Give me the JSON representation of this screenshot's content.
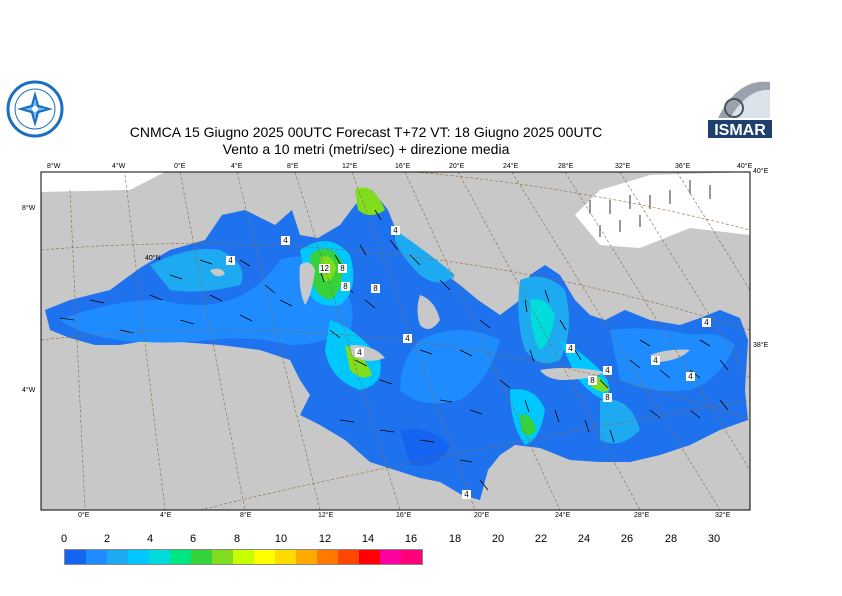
{
  "header": {
    "title_line1": "CNMCA 15   Giugno  2025 00UTC Forecast T+72 VT: 18   Giugno  2025 00UTC",
    "title_line2": "Vento a 10 metri (metri/sec) + direzione media"
  },
  "logos": {
    "left_name": "aeronautica-meteo-logo",
    "right_text": "ISMAR"
  },
  "map": {
    "top_lon_ticks": [
      "8°W",
      "4°W",
      "0°E",
      "4°E",
      "8°E",
      "12°E",
      "16°E",
      "20°E",
      "24°E",
      "28°E",
      "32°E",
      "36°E",
      "40°E"
    ],
    "bottom_lon_ticks": [
      "0°E",
      "4°E",
      "8°E",
      "12°E",
      "16°E",
      "20°E",
      "24°E",
      "28°E",
      "32°E"
    ],
    "left_lat_ticks": [
      "8°W",
      "40°N",
      "4°W"
    ],
    "right_lat_ticks": [
      "40°E",
      "38°E"
    ],
    "speed_labels": [
      "4",
      "4",
      "12",
      "8",
      "8",
      "8",
      "4",
      "4",
      "4",
      "4",
      "8",
      "4",
      "4",
      "4",
      "4",
      "8",
      "4"
    ],
    "land_color": "#c8c8c8",
    "graticule_color": "#8b6a3e"
  },
  "legend": {
    "labels": [
      "0",
      "2",
      "4",
      "6",
      "8",
      "10",
      "12",
      "14",
      "16",
      "18",
      "20",
      "22",
      "24",
      "26",
      "28",
      "30"
    ],
    "colors": [
      "#1464f0",
      "#1e8cff",
      "#1eaaf0",
      "#00c8ff",
      "#00dcdc",
      "#00e682",
      "#36d23c",
      "#82dc1e",
      "#c8ff00",
      "#ffff00",
      "#ffdc00",
      "#ffaa00",
      "#ff7800",
      "#ff4600",
      "#ff0000",
      "#ff00a0",
      "#ff0078"
    ]
  }
}
